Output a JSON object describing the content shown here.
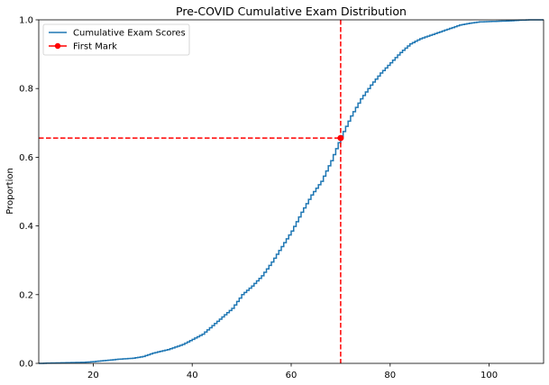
{
  "chart_data": {
    "type": "line",
    "title": "Pre-COVID Cumulative Exam Distribution",
    "xlabel": "",
    "ylabel": "Proportion",
    "xlim": [
      9,
      111
    ],
    "ylim": [
      0,
      1.0
    ],
    "xticks": [
      20,
      40,
      60,
      80,
      100
    ],
    "yticks": [
      0.0,
      0.2,
      0.4,
      0.6,
      0.8,
      1.0
    ],
    "xtick_labels": [
      "20",
      "40",
      "60",
      "80",
      "100"
    ],
    "ytick_labels": [
      "0.0",
      "0.2",
      "0.4",
      "0.6",
      "0.8",
      "1.0"
    ],
    "grid": false,
    "legend_position": "top-left",
    "series": [
      {
        "name": "Cumulative Exam Scores",
        "color": "#1f77b4",
        "style": "step",
        "x": [
          9,
          12,
          15,
          18,
          20,
          22,
          25,
          28,
          30,
          32,
          35,
          38,
          40,
          42,
          44,
          46,
          48,
          50,
          52,
          54,
          56,
          58,
          60,
          62,
          64,
          66,
          68,
          70,
          72,
          74,
          76,
          78,
          80,
          82,
          84,
          86,
          88,
          90,
          92,
          94,
          96,
          98,
          100,
          102,
          104,
          106,
          108,
          111
        ],
        "y": [
          0.0,
          0.001,
          0.002,
          0.003,
          0.005,
          0.008,
          0.012,
          0.015,
          0.02,
          0.03,
          0.04,
          0.055,
          0.07,
          0.085,
          0.11,
          0.135,
          0.16,
          0.2,
          0.225,
          0.255,
          0.295,
          0.34,
          0.385,
          0.44,
          0.49,
          0.53,
          0.59,
          0.66,
          0.72,
          0.77,
          0.81,
          0.845,
          0.875,
          0.905,
          0.93,
          0.945,
          0.955,
          0.965,
          0.975,
          0.985,
          0.99,
          0.994,
          0.995,
          0.996,
          0.997,
          0.999,
          1.0,
          1.0
        ]
      },
      {
        "name": "First Mark",
        "color": "#ff0000",
        "style": "marker",
        "x": [
          70
        ],
        "y": [
          0.656
        ]
      }
    ],
    "reference_lines": {
      "vertical_x": 70,
      "horizontal_y": 0.656,
      "color": "#ff0000"
    }
  }
}
